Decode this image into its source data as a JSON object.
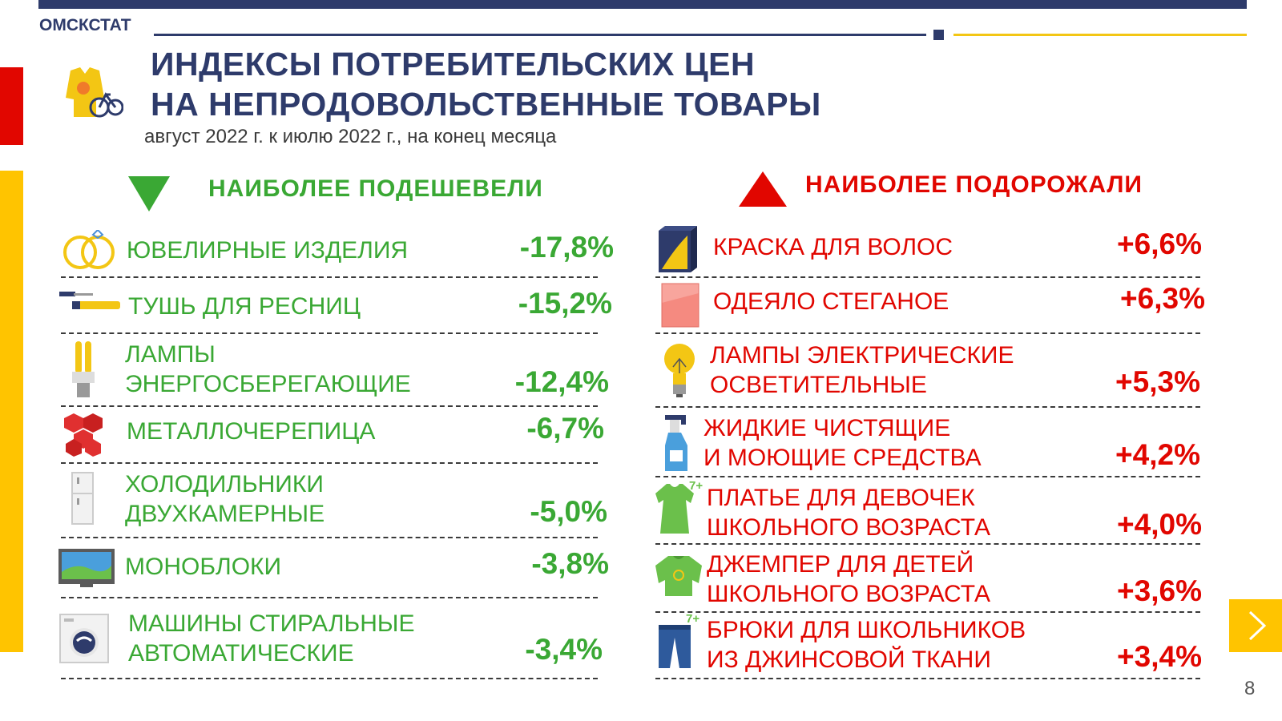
{
  "header": {
    "org": "ОМСКСТАТ",
    "title_line1": "ИНДЕКСЫ ПОТРЕБИТЕЛЬСКИХ ЦЕН",
    "title_line2": "НА НЕПРОДОВОЛЬСТВЕННЫЕ ТОВАРЫ",
    "subtitle": "август 2022 г. к июлю 2022 г., на конец месяца"
  },
  "cheaper": {
    "heading": "НАИБОЛЕЕ ПОДЕШЕВЕЛИ",
    "items": [
      {
        "line1": "ЮВЕЛИРНЫЕ ИЗДЕЛИЯ",
        "line2": "",
        "value": "-17,8%",
        "icon": "rings-icon"
      },
      {
        "line1": "ТУШЬ ДЛЯ РЕСНИЦ",
        "line2": "",
        "value": "-15,2%",
        "icon": "mascara-icon"
      },
      {
        "line1": "ЛАМПЫ",
        "line2": "ЭНЕРГОСБЕРЕГАЮЩИЕ",
        "value": "-12,4%",
        "icon": "cfl-lamp-icon"
      },
      {
        "line1": "МЕТАЛЛОЧЕРЕПИЦА",
        "line2": "",
        "value": "-6,7%",
        "icon": "roof-tile-icon"
      },
      {
        "line1": "ХОЛОДИЛЬНИКИ",
        "line2": "ДВУХКАМЕРНЫЕ",
        "value": "-5,0%",
        "icon": "fridge-icon"
      },
      {
        "line1": "МОНОБЛОКИ",
        "line2": "",
        "value": "-3,8%",
        "icon": "monoblock-icon"
      },
      {
        "line1": "МАШИНЫ СТИРАЛЬНЫЕ",
        "line2": "АВТОМАТИЧЕСКИЕ",
        "value": "-3,4%",
        "icon": "washing-machine-icon"
      }
    ]
  },
  "pricier": {
    "heading": "НАИБОЛЕЕ ПОДОРОЖАЛИ",
    "items": [
      {
        "line1": "КРАСКА ДЛЯ ВОЛОС",
        "line2": "",
        "value": "+6,6%",
        "icon": "hair-dye-icon"
      },
      {
        "line1": "ОДЕЯЛО СТЕГАНОЕ",
        "line2": "",
        "value": "+6,3%",
        "icon": "blanket-icon"
      },
      {
        "line1": "ЛАМПЫ ЭЛЕКТРИЧЕСКИЕ",
        "line2": "ОСВЕТИТЕЛЬНЫЕ",
        "value": "+5,3%",
        "icon": "light-bulb-icon"
      },
      {
        "line1": "ЖИДКИЕ ЧИСТЯЩИЕ",
        "line2": "И МОЮЩИЕ СРЕДСТВА",
        "value": "+4,2%",
        "icon": "spray-bottle-icon"
      },
      {
        "line1": "ПЛАТЬЕ ДЛЯ ДЕВОЧЕК",
        "line2": "ШКОЛЬНОГО ВОЗРАСТА",
        "value": "+4,0%",
        "icon": "dress-icon",
        "badge": "7+"
      },
      {
        "line1": "ДЖЕМПЕР ДЛЯ ДЕТЕЙ",
        "line2": "ШКОЛЬНОГО ВОЗРАСТА",
        "value": "+3,6%",
        "icon": "jumper-icon"
      },
      {
        "line1": "БРЮКИ ДЛЯ ШКОЛЬНИКОВ",
        "line2": "ИЗ ДЖИНСОВОЙ ТКАНИ",
        "value": "+3,4%",
        "icon": "jeans-icon",
        "badge": "7+"
      }
    ]
  },
  "page_number": "8",
  "colors": {
    "navy": "#2e3b6b",
    "green": "#3aa834",
    "red": "#e10600",
    "yellow": "#ffc400"
  }
}
